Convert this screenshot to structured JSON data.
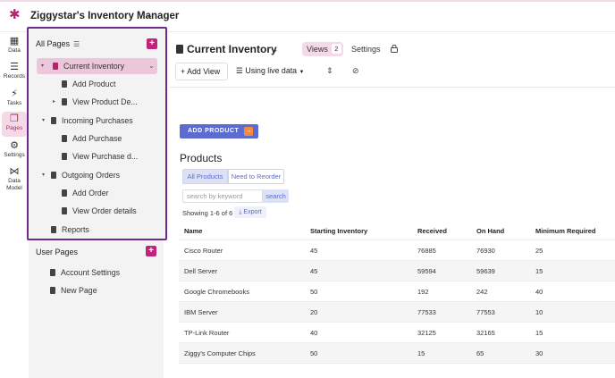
{
  "app": {
    "title": "Ziggystar's Inventory Manager"
  },
  "rail": [
    {
      "label": "Data",
      "icon": "table-icon"
    },
    {
      "label": "Records",
      "icon": "database-icon"
    },
    {
      "label": "Tasks",
      "icon": "bolt-icon"
    },
    {
      "label": "Pages",
      "icon": "pages-icon",
      "active": true
    },
    {
      "label": "Settings",
      "icon": "gear-icon"
    },
    {
      "label": "Data\nModel",
      "label_line1": "Data",
      "label_line2": "Model",
      "icon": "data-model-icon"
    }
  ],
  "sidebar": {
    "all_pages_title": "All Pages",
    "user_pages_title": "User Pages",
    "tree": [
      {
        "label": "Current Inventory"
      },
      {
        "label": "Add Product"
      },
      {
        "label": "View Product De..."
      },
      {
        "label": "Incoming Purchases"
      },
      {
        "label": "Add Purchase"
      },
      {
        "label": "View Purchase d..."
      },
      {
        "label": "Outgoing Orders"
      },
      {
        "label": "Add Order"
      },
      {
        "label": "View Order details"
      },
      {
        "label": "Reports"
      }
    ],
    "user_pages": [
      {
        "label": "Account Settings"
      },
      {
        "label": "New Page"
      }
    ]
  },
  "header": {
    "title": "Current Inventory",
    "views_label": "Views",
    "views_count": "2",
    "settings_label": "Settings"
  },
  "toolbar": {
    "add_view": "Add View",
    "live_data": "Using live data"
  },
  "content": {
    "add_product": "ADD PRODUCT",
    "products_title": "Products",
    "seg_all": "All Products",
    "seg_reorder": "Need to Reorder",
    "search_placeholder": "search by keyword",
    "search_btn": "search",
    "showing": "Showing 1-6 of 6",
    "export": "Export"
  },
  "table": {
    "columns": [
      "Name",
      "Starting Inventory",
      "Received",
      "On Hand",
      "Minimum Required"
    ],
    "rows": [
      [
        "Cisco Router",
        "45",
        "76885",
        "76930",
        "25"
      ],
      [
        "Dell Server",
        "45",
        "59594",
        "59639",
        "15"
      ],
      [
        "Google Chromebooks",
        "50",
        "192",
        "242",
        "40"
      ],
      [
        "IBM Server",
        "20",
        "77533",
        "77553",
        "10"
      ],
      [
        "TP-Link Router",
        "40",
        "32125",
        "32165",
        "15"
      ],
      [
        "Ziggy's Computer Chips",
        "50",
        "15",
        "65",
        "30"
      ]
    ]
  },
  "colors": {
    "accent": "#b5256f",
    "primary": "#5b6bd0",
    "highlight_border": "#6e2a8e"
  }
}
